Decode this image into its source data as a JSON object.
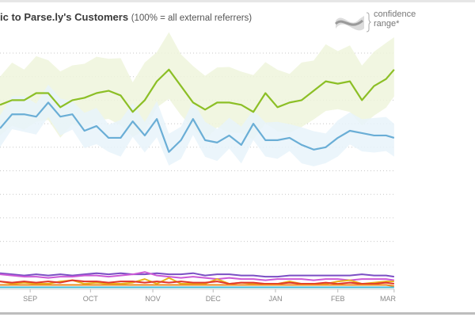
{
  "header": {
    "title_bold": "ic to Parse.ly's Customers",
    "title_note": "(100% = all external referrers)"
  },
  "legend": {
    "confidence_label_line1": "confidence",
    "confidence_label_line2": "range*"
  },
  "chart_data": {
    "type": "line",
    "title": "ic to Parse.ly's Customers (100% = all external referrers)",
    "xlabel": "",
    "ylabel": "",
    "x_tick_labels": [
      "SEP",
      "OCT",
      "NOV",
      "DEC",
      "JAN",
      "FEB",
      "MAR"
    ],
    "x_tick_dates": [
      "Sep 1",
      "Oct 1",
      "Nov 1",
      "Dec 1",
      "Jan 1",
      "Feb 1",
      "Mar 1"
    ],
    "ylim": [
      0,
      10
    ],
    "y_gridlines": [
      1,
      2,
      3,
      4,
      5,
      6,
      7,
      8,
      9,
      10
    ],
    "grid": "horizontal dotted",
    "legend_placement": "top-right",
    "x": [
      "Aug 17",
      "Aug 23",
      "Aug 29",
      "Sep 4",
      "Sep 10",
      "Sep 16",
      "Sep 22",
      "Sep 28",
      "Oct 4",
      "Oct 10",
      "Oct 16",
      "Oct 22",
      "Oct 28",
      "Nov 3",
      "Nov 9",
      "Nov 15",
      "Nov 21",
      "Nov 27",
      "Dec 3",
      "Dec 9",
      "Dec 15",
      "Dec 21",
      "Dec 27",
      "Jan 2",
      "Jan 8",
      "Jan 14",
      "Jan 20",
      "Jan 26",
      "Feb 1",
      "Feb 7",
      "Feb 13",
      "Feb 19",
      "Feb 25",
      "Mar 1"
    ],
    "series": [
      {
        "color": "#8cbf26",
        "band_color": "#eef4dc",
        "has_band": true,
        "values": [
          7.8,
          8.0,
          8.0,
          8.3,
          8.3,
          7.7,
          8.0,
          8.1,
          8.3,
          8.4,
          8.2,
          7.5,
          8.0,
          8.8,
          9.3,
          8.6,
          7.9,
          7.6,
          7.9,
          7.9,
          7.8,
          7.5,
          8.3,
          7.7,
          7.9,
          8.0,
          8.4,
          8.8,
          8.7,
          8.8,
          8.0,
          8.6,
          8.9,
          9.3
        ]
      },
      {
        "color": "#6aaed6",
        "band_color": "#e8f3fa",
        "has_band": true,
        "values": [
          6.8,
          7.4,
          7.4,
          7.3,
          7.9,
          7.3,
          7.4,
          6.7,
          6.9,
          6.4,
          6.4,
          7.1,
          6.5,
          7.2,
          5.8,
          6.3,
          7.2,
          6.3,
          6.2,
          6.5,
          6.1,
          7.0,
          6.3,
          6.3,
          6.4,
          6.1,
          5.9,
          6.0,
          6.4,
          6.7,
          6.6,
          6.5,
          6.5,
          6.4
        ]
      },
      {
        "color": "#7b4fc4",
        "has_band": false,
        "values": [
          0.65,
          0.6,
          0.55,
          0.6,
          0.55,
          0.6,
          0.55,
          0.6,
          0.65,
          0.6,
          0.65,
          0.6,
          0.6,
          0.65,
          0.6,
          0.6,
          0.65,
          0.55,
          0.6,
          0.6,
          0.55,
          0.55,
          0.5,
          0.5,
          0.55,
          0.55,
          0.55,
          0.55,
          0.55,
          0.55,
          0.6,
          0.55,
          0.55,
          0.5
        ]
      },
      {
        "color": "#cc5ad6",
        "has_band": false,
        "values": [
          0.6,
          0.55,
          0.5,
          0.5,
          0.45,
          0.5,
          0.5,
          0.55,
          0.55,
          0.5,
          0.55,
          0.6,
          0.7,
          0.55,
          0.5,
          0.45,
          0.5,
          0.45,
          0.4,
          0.45,
          0.4,
          0.4,
          0.35,
          0.4,
          0.4,
          0.4,
          0.35,
          0.4,
          0.4,
          0.35,
          0.4,
          0.4,
          0.4,
          0.35
        ]
      },
      {
        "color": "#e8b41c",
        "has_band": false,
        "values": [
          0.3,
          0.2,
          0.25,
          0.2,
          0.2,
          0.3,
          0.35,
          0.2,
          0.25,
          0.2,
          0.2,
          0.25,
          0.4,
          0.2,
          0.45,
          0.2,
          0.2,
          0.2,
          0.4,
          0.2,
          0.25,
          0.2,
          0.2,
          0.2,
          0.3,
          0.2,
          0.2,
          0.2,
          0.3,
          0.35,
          0.2,
          0.25,
          0.3,
          0.3
        ]
      },
      {
        "color": "#e0352b",
        "has_band": false,
        "values": [
          0.3,
          0.25,
          0.3,
          0.25,
          0.3,
          0.25,
          0.35,
          0.3,
          0.3,
          0.25,
          0.3,
          0.3,
          0.25,
          0.3,
          0.25,
          0.3,
          0.25,
          0.25,
          0.3,
          0.2,
          0.25,
          0.25,
          0.2,
          0.2,
          0.25,
          0.2,
          0.2,
          0.25,
          0.2,
          0.25,
          0.2,
          0.2,
          0.25,
          0.2
        ]
      },
      {
        "color": "#f28a1e",
        "has_band": false,
        "values": [
          0.15,
          0.15,
          0.15,
          0.15,
          0.15,
          0.15,
          0.15,
          0.15,
          0.15,
          0.15,
          0.15,
          0.15,
          0.15,
          0.15,
          0.15,
          0.15,
          0.15,
          0.15,
          0.15,
          0.15,
          0.15,
          0.15,
          0.15,
          0.15,
          0.15,
          0.15,
          0.15,
          0.15,
          0.15,
          0.15,
          0.15,
          0.15,
          0.15,
          0.1
        ]
      },
      {
        "color": "#45bcd8",
        "has_band": false,
        "values": [
          0.05,
          0.05,
          0.05,
          0.05,
          0.05,
          0.05,
          0.05,
          0.05,
          0.05,
          0.05,
          0.05,
          0.05,
          0.05,
          0.05,
          0.05,
          0.05,
          0.05,
          0.05,
          0.05,
          0.05,
          0.05,
          0.05,
          0.05,
          0.05,
          0.05,
          0.05,
          0.05,
          0.05,
          0.05,
          0.05,
          0.05,
          0.05,
          0.05,
          0.05
        ]
      }
    ]
  }
}
